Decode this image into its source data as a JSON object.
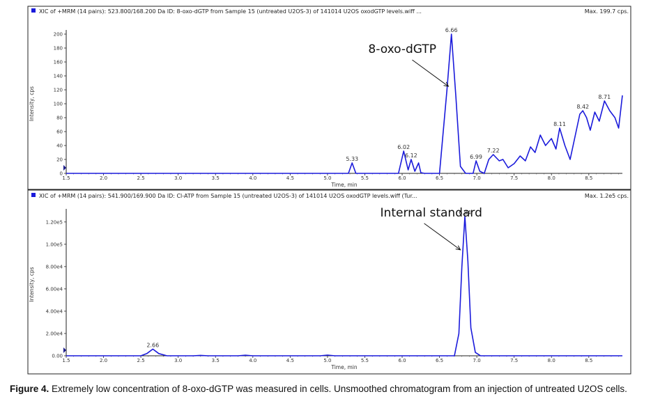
{
  "caption": {
    "label": "Figure 4.",
    "text": "Extremely low concentration of 8-oxo-dGTP was measured in cells. Unsmoothed chromatogram from an injection of untreated U2OS cells."
  },
  "colors": {
    "trace": "#1a1adb",
    "annotation": "#111111",
    "frame": "#222222"
  },
  "chart_data": [
    {
      "type": "line",
      "header": "XIC of +MRM (14 pairs): 523.800/168.200 Da ID: 8-oxo-dGTP from Sample 15 (untreated U2OS-3) of 141014 U2OS oxodGTP levels.wiff ...",
      "max_label": "Max. 199.7 cps.",
      "xlabel": "Time, min",
      "ylabel": "Intensity, cps",
      "xlim": [
        1.5,
        8.95
      ],
      "ylim": [
        0,
        200
      ],
      "xticks": [
        1.5,
        2.0,
        2.5,
        3.0,
        3.5,
        4.0,
        4.5,
        5.0,
        5.5,
        6.0,
        6.5,
        7.0,
        7.5,
        8.0,
        8.5
      ],
      "xtick_labels": [
        "1.5",
        "2.0",
        "2.5",
        "3.0",
        "3.5",
        "4.0",
        "4.5",
        "5.0",
        "5.5",
        "6.0",
        "6.5",
        "7.0",
        "7.5",
        "8.0",
        "8.5"
      ],
      "yticks": [
        0,
        20,
        40,
        60,
        80,
        100,
        120,
        140,
        160,
        180,
        200
      ],
      "ytick_labels": [
        "0",
        "20",
        "40",
        "60",
        "80",
        "100",
        "120",
        "140",
        "160",
        "180",
        "200"
      ],
      "series": [
        {
          "x": [
            1.5,
            5.28,
            5.33,
            5.38,
            5.95,
            6.02,
            6.08,
            6.12,
            6.17,
            6.22,
            6.25,
            6.3,
            6.5,
            6.6,
            6.66,
            6.72,
            6.78,
            6.85,
            6.95,
            6.99,
            7.04,
            7.1,
            7.16,
            7.22,
            7.3,
            7.35,
            7.42,
            7.5,
            7.58,
            7.65,
            7.72,
            7.78,
            7.85,
            7.92,
            8.0,
            8.06,
            8.11,
            8.18,
            8.25,
            8.32,
            8.38,
            8.42,
            8.47,
            8.52,
            8.58,
            8.64,
            8.71,
            8.78,
            8.85,
            8.9,
            8.95
          ],
          "y": [
            0,
            0,
            15,
            0,
            0,
            32,
            5,
            20,
            3,
            15,
            1,
            0,
            0,
            120,
            200,
            110,
            10,
            0,
            0,
            18,
            3,
            0,
            20,
            27,
            18,
            20,
            8,
            14,
            25,
            18,
            38,
            30,
            55,
            40,
            50,
            35,
            65,
            40,
            20,
            55,
            85,
            90,
            80,
            62,
            88,
            75,
            104,
            90,
            80,
            65,
            112
          ]
        }
      ],
      "peak_labels": [
        {
          "x": 5.33,
          "y": 15,
          "text": "5.33"
        },
        {
          "x": 6.02,
          "y": 32,
          "text": "6.02"
        },
        {
          "x": 6.12,
          "y": 20,
          "text": "6.12"
        },
        {
          "x": 6.66,
          "y": 200,
          "text": "6.66"
        },
        {
          "x": 6.99,
          "y": 18,
          "text": "6.99"
        },
        {
          "x": 7.22,
          "y": 27,
          "text": "7.22"
        },
        {
          "x": 8.11,
          "y": 65,
          "text": "8.11"
        },
        {
          "x": 8.42,
          "y": 90,
          "text": "8.42"
        },
        {
          "x": 8.71,
          "y": 104,
          "text": "8.71"
        }
      ],
      "annotation": {
        "text": "8-oxo-dGTP",
        "target_x": 6.62,
        "target_y": 125
      }
    },
    {
      "type": "line",
      "header": "XIC of +MRM (14 pairs): 541.900/169.900 Da ID: Cl-ATP from Sample 15 (untreated U2OS-3) of 141014 U2OS oxodGTP levels.wiff (Tur...",
      "max_label": "Max. 1.2e5 cps.",
      "xlabel": "Time, min",
      "ylabel": "Intensity, cps",
      "xlim": [
        1.5,
        8.95
      ],
      "ylim": [
        0,
        128000
      ],
      "xticks": [
        1.5,
        2.0,
        2.5,
        3.0,
        3.5,
        4.0,
        4.5,
        5.0,
        5.5,
        6.0,
        6.5,
        7.0,
        7.5,
        8.0,
        8.5
      ],
      "xtick_labels": [
        "1.5",
        "2.0",
        "2.5",
        "3.0",
        "3.5",
        "4.0",
        "4.5",
        "5.0",
        "5.5",
        "6.0",
        "6.5",
        "7.0",
        "7.5",
        "8.0",
        "8.5"
      ],
      "yticks": [
        0,
        20000,
        40000,
        60000,
        80000,
        100000,
        120000
      ],
      "ytick_labels": [
        "0.00",
        "2.00e4",
        "4.00e4",
        "6.00e4",
        "8.00e4",
        "1.00e5",
        "1.20e5"
      ],
      "series": [
        {
          "x": [
            1.5,
            2.0,
            2.5,
            2.58,
            2.66,
            2.74,
            2.85,
            3.2,
            3.3,
            3.4,
            3.5,
            3.8,
            3.9,
            4.0,
            4.1,
            4.9,
            5.0,
            5.1,
            6.0,
            6.7,
            6.76,
            6.8,
            6.84,
            6.88,
            6.92,
            6.98,
            7.05,
            8.95
          ],
          "y": [
            0,
            0,
            0,
            2000,
            6000,
            2000,
            0,
            0,
            400,
            0,
            0,
            0,
            500,
            0,
            0,
            0,
            600,
            0,
            0,
            0,
            20000,
            80000,
            125000,
            85000,
            25000,
            3000,
            0,
            0
          ]
        }
      ],
      "peak_labels": [
        {
          "x": 2.66,
          "y": 6000,
          "text": "2.66"
        },
        {
          "x": 6.84,
          "y": 125000,
          "text": "6.84"
        }
      ],
      "annotation": {
        "text": "Internal standard",
        "target_x": 6.78,
        "target_y": 95000
      }
    }
  ]
}
